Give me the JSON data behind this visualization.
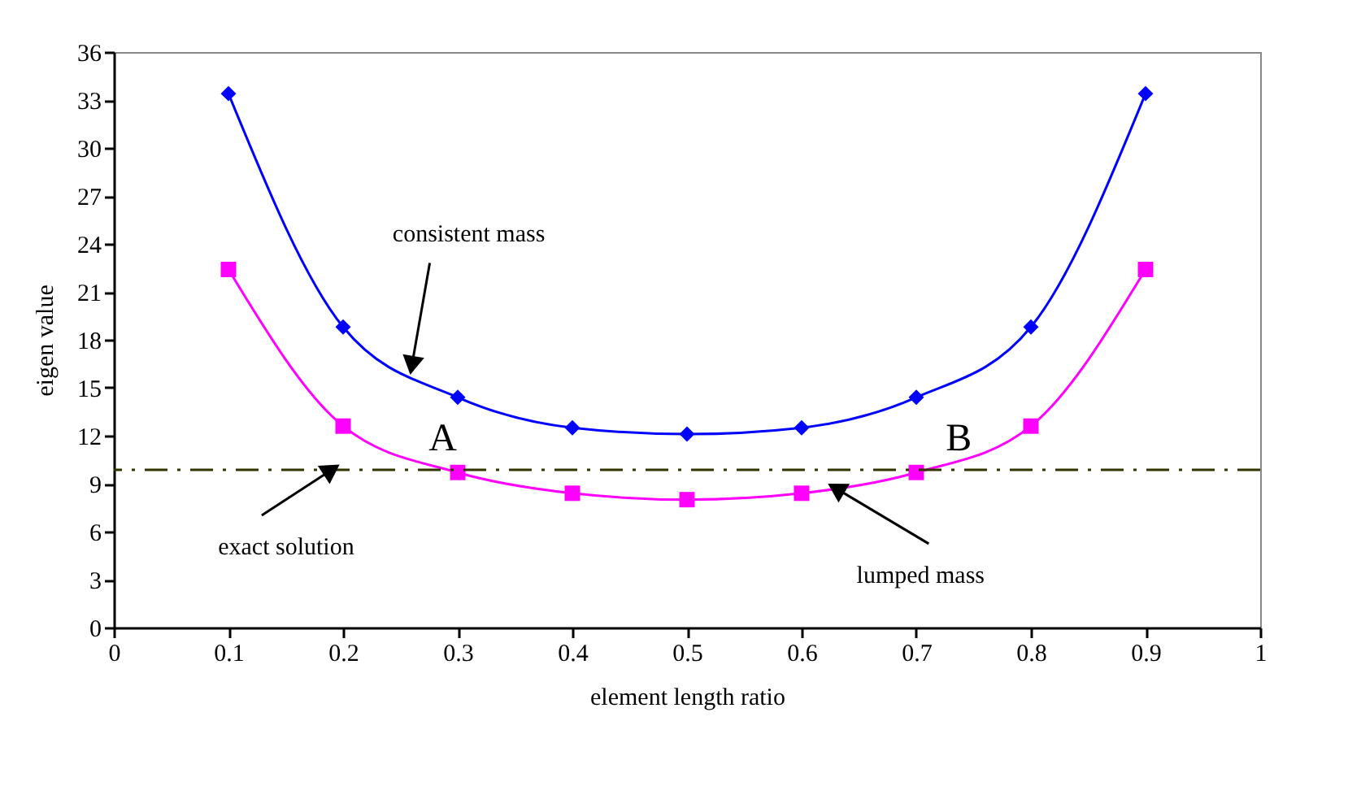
{
  "chart_data": {
    "type": "line",
    "xlabel": "element length ratio",
    "ylabel": "eigen value",
    "x": [
      0.1,
      0.2,
      0.3,
      0.4,
      0.5,
      0.6,
      0.7,
      0.8,
      0.9
    ],
    "series": [
      {
        "color": "#0000ff",
        "marker": "diamond",
        "values": [
          33.4,
          18.8,
          14.4,
          12.5,
          12.1,
          12.5,
          14.4,
          18.8,
          33.4
        ]
      },
      {
        "color": "#ff00ff",
        "marker": "square",
        "values": [
          22.4,
          12.6,
          9.7,
          8.4,
          8.0,
          8.4,
          9.7,
          12.6,
          22.4
        ]
      }
    ],
    "xlim": [
      0,
      1
    ],
    "xticks": [
      0,
      0.1,
      0.2,
      0.3,
      0.4,
      0.5,
      0.6,
      0.7,
      0.8,
      0.9,
      1
    ],
    "ylim": [
      0,
      36
    ],
    "yticks": [
      0,
      3,
      6,
      9,
      12,
      15,
      18,
      21,
      24,
      27,
      30,
      33,
      36
    ],
    "ref_lines": [
      {
        "axis": "y",
        "value": 9.87,
        "color": "#333300",
        "line_style": "dashdot"
      }
    ],
    "annotations": [
      {
        "text": "consistent mass",
        "x": 0.26,
        "y": 16.4
      },
      {
        "text": "exact solution",
        "x": 0.19,
        "y": 9.87
      },
      {
        "text": "lumped mass",
        "x": 0.63,
        "y": 8.7
      },
      {
        "text": "A",
        "x": 0.27,
        "y": 9.87
      },
      {
        "text": "B",
        "x": 0.72,
        "y": 9.87
      }
    ],
    "grid": false,
    "line_style": "solid"
  }
}
